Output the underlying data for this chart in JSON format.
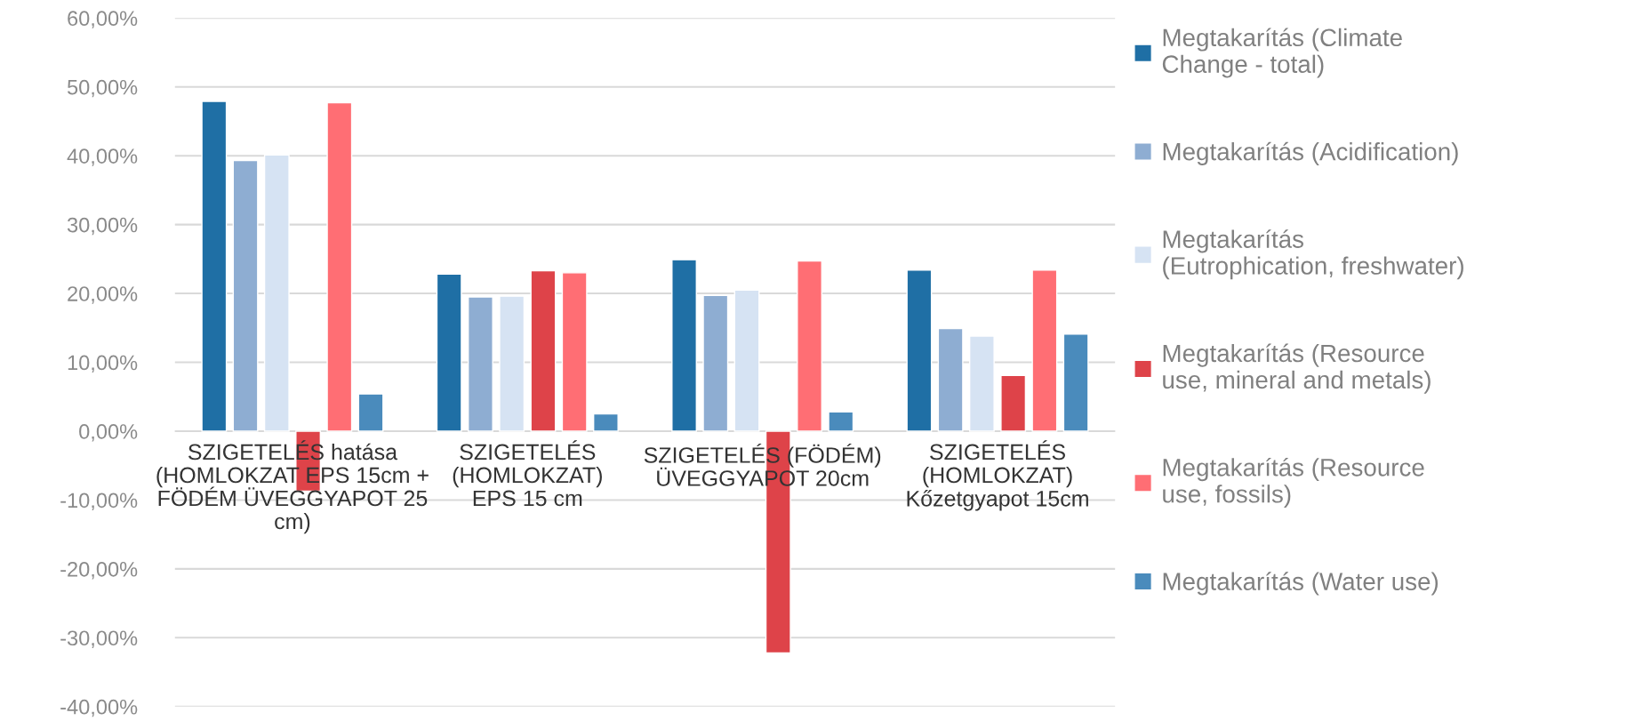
{
  "chart_data": {
    "type": "bar",
    "categories": [
      "SZIGETELÉS hatása\n(HOMLOKZAT EPS 15cm +\nFÖDÉM ÜVEGGYAPOT 25\ncm)",
      "SZIGETELÉS\n(HOMLOKZAT)\nEPS 15 cm",
      "SZIGETELÉS (FÖDÉM)\nÜVEGGYAPOT 20cm",
      "SZIGETELÉS\n(HOMLOKZAT)\nKőzetgyapot 15cm"
    ],
    "series": [
      {
        "name": "Megtakarítás (Climate\nChange - total)",
        "color": "#1f6fa5",
        "values": [
          47.9,
          22.8,
          24.9,
          23.4
        ]
      },
      {
        "name": "Megtakarítás (Acidification)",
        "color": "#8eadd2",
        "values": [
          39.3,
          19.5,
          19.7,
          14.9
        ]
      },
      {
        "name": "Megtakarítás\n(Eutrophication, freshwater)",
        "color": "#d6e3f3",
        "values": [
          40.1,
          19.6,
          20.5,
          13.8
        ]
      },
      {
        "name": "Megtakarítás (Resource\nuse, mineral and metals)",
        "color": "#de4349",
        "values": [
          -8.7,
          23.3,
          -32.2,
          8.1
        ]
      },
      {
        "name": "Megtakarítás (Resource\nuse, fossils)",
        "color": "#ff6e74",
        "values": [
          47.7,
          23.0,
          24.7,
          23.4
        ]
      },
      {
        "name": "Megtakarítás (Water use)",
        "color": "#4a8bbc",
        "values": [
          5.4,
          2.5,
          2.8,
          14.1
        ]
      }
    ],
    "ylim": [
      -40,
      60
    ],
    "yticks": [
      {
        "value": -40,
        "label": "-40,00%"
      },
      {
        "value": -30,
        "label": "-30,00%"
      },
      {
        "value": -20,
        "label": "-20,00%"
      },
      {
        "value": -10,
        "label": "-10,00%"
      },
      {
        "value": 0,
        "label": "0,00%"
      },
      {
        "value": 10,
        "label": "10,00%"
      },
      {
        "value": 20,
        "label": "20,00%"
      },
      {
        "value": 30,
        "label": "30,00%"
      },
      {
        "value": 40,
        "label": "40,00%"
      },
      {
        "value": 50,
        "label": "50,00%"
      },
      {
        "value": 60,
        "label": "60,00%"
      }
    ],
    "grid": "y",
    "legend": "right"
  }
}
